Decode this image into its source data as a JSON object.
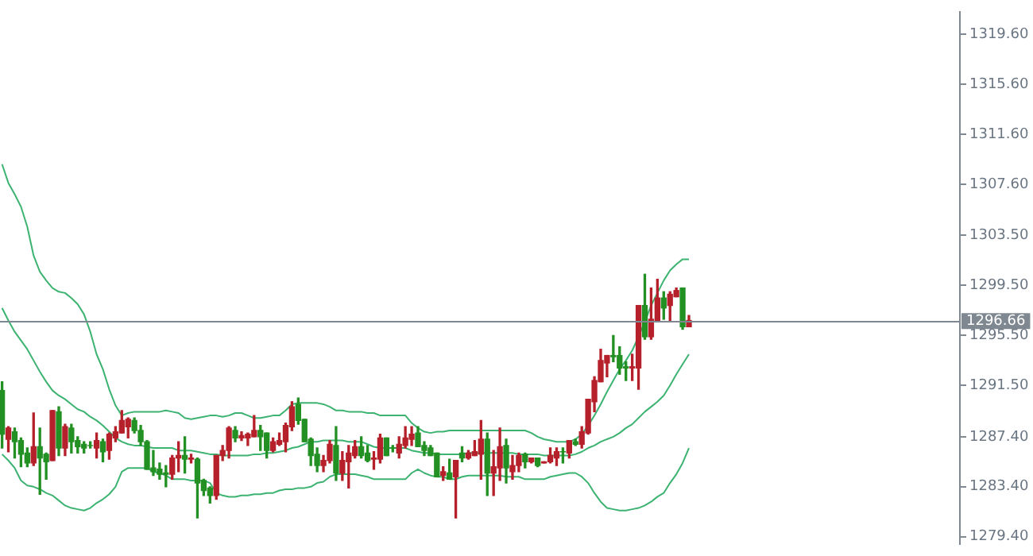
{
  "chart_data": {
    "type": "candlestick",
    "categories": [
      null,
      null,
      null,
      null,
      null,
      null,
      null,
      null,
      null,
      null,
      null,
      null,
      null,
      null,
      null,
      null,
      null,
      null,
      null,
      null,
      null,
      null,
      null,
      null,
      null,
      null,
      null,
      null,
      null,
      null,
      null,
      null,
      null,
      null,
      null,
      null,
      null,
      null,
      null,
      null,
      null,
      null,
      null,
      null,
      null,
      null,
      null,
      null,
      null,
      null,
      null,
      null,
      null,
      null,
      null,
      null,
      null,
      null,
      null,
      null,
      null,
      null,
      null,
      null,
      null,
      null,
      null,
      null,
      null,
      null,
      null,
      null,
      null,
      null,
      null,
      null,
      null,
      null,
      null,
      null,
      null,
      null,
      null,
      null,
      null,
      null,
      null,
      null,
      null,
      null,
      null,
      null,
      null,
      null,
      null,
      null,
      null,
      null,
      null,
      null,
      null,
      null,
      null,
      null,
      null,
      null,
      null,
      null,
      null,
      null
    ],
    "ohlc": [
      [
        1291.1,
        1291.8,
        1286.5,
        1287.6
      ],
      [
        1287.2,
        1288.2,
        1286.2,
        1288.1
      ],
      [
        1287.8,
        1288.1,
        1285.7,
        1287.0
      ],
      [
        1287.1,
        1287.3,
        1285.0,
        1286.0
      ],
      [
        1286.1,
        1286.5,
        1285.0,
        1285.3
      ],
      [
        1285.3,
        1289.3,
        1285.1,
        1286.6
      ],
      [
        1286.6,
        1288.1,
        1282.8,
        1285.7
      ],
      [
        1286.0,
        1286.1,
        1284.0,
        1285.4
      ],
      [
        1285.5,
        1289.5,
        1285.5,
        1289.5
      ],
      [
        1289.4,
        1289.8,
        1285.9,
        1286.5
      ],
      [
        1286.5,
        1288.4,
        1285.9,
        1288.2
      ],
      [
        1288.1,
        1288.4,
        1286.1,
        1287.0
      ],
      [
        1287.1,
        1287.4,
        1286.1,
        1286.6
      ],
      [
        1286.8,
        1287.0,
        1286.1,
        1286.5
      ],
      [
        1286.7,
        1287.0,
        1286.5,
        1286.7
      ],
      [
        1286.5,
        1287.7,
        1285.7,
        1287.1
      ],
      [
        1287.0,
        1287.2,
        1285.4,
        1286.2
      ],
      [
        1286.3,
        1287.7,
        1285.6,
        1287.6
      ],
      [
        1287.3,
        1288.2,
        1287.0,
        1287.8
      ],
      [
        1287.7,
        1289.5,
        1287.7,
        1288.7
      ],
      [
        1288.2,
        1288.9,
        1287.3,
        1288.8
      ],
      [
        1288.7,
        1288.9,
        1287.7,
        1287.9
      ],
      [
        1287.9,
        1288.3,
        1286.7,
        1287.0
      ],
      [
        1287.0,
        1287.1,
        1284.8,
        1284.8
      ],
      [
        1284.9,
        1286.3,
        1284.3,
        1284.6
      ],
      [
        1284.8,
        1285.3,
        1284.0,
        1284.4
      ],
      [
        1284.5,
        1285.1,
        1283.4,
        1284.4
      ],
      [
        1284.4,
        1285.9,
        1284.0,
        1285.7
      ],
      [
        1285.7,
        1287.0,
        1284.6,
        1285.9
      ],
      [
        1285.9,
        1287.4,
        1284.5,
        1285.6
      ],
      [
        1285.6,
        1286.0,
        1285.3,
        1285.7
      ],
      [
        1285.6,
        1285.7,
        1280.9,
        1283.7
      ],
      [
        1283.9,
        1284.0,
        1282.7,
        1283.1
      ],
      [
        1283.3,
        1283.4,
        1282.1,
        1282.7
      ],
      [
        1282.7,
        1285.9,
        1282.4,
        1285.9
      ],
      [
        1285.9,
        1286.7,
        1285.5,
        1286.3
      ],
      [
        1286.3,
        1288.2,
        1285.7,
        1288.1
      ],
      [
        1287.9,
        1288.2,
        1287.0,
        1287.3
      ],
      [
        1287.3,
        1287.8,
        1287.1,
        1287.5
      ],
      [
        1287.3,
        1287.7,
        1286.7,
        1287.6
      ],
      [
        1287.4,
        1289.1,
        1287.4,
        1287.9
      ],
      [
        1287.9,
        1288.3,
        1286.3,
        1287.4
      ],
      [
        1287.7,
        1287.7,
        1285.7,
        1286.3
      ],
      [
        1286.3,
        1287.3,
        1286.2,
        1287.0
      ],
      [
        1286.8,
        1287.7,
        1286.7,
        1287.1
      ],
      [
        1287.0,
        1288.5,
        1286.2,
        1288.3
      ],
      [
        1288.2,
        1290.2,
        1287.9,
        1289.8
      ],
      [
        1290.0,
        1290.5,
        1288.4,
        1288.7
      ],
      [
        1288.8,
        1288.8,
        1287.0,
        1287.0
      ],
      [
        1287.2,
        1287.3,
        1285.1,
        1285.9
      ],
      [
        1286.0,
        1286.5,
        1284.6,
        1285.1
      ],
      [
        1285.1,
        1285.9,
        1284.6,
        1285.5
      ],
      [
        1285.5,
        1287.1,
        1285.3,
        1286.8
      ],
      [
        1286.7,
        1288.2,
        1283.9,
        1284.5
      ],
      [
        1284.5,
        1286.2,
        1283.9,
        1285.5
      ],
      [
        1285.4,
        1286.7,
        1283.3,
        1286.1
      ],
      [
        1285.9,
        1287.1,
        1285.7,
        1286.6
      ],
      [
        1286.6,
        1287.4,
        1285.7,
        1285.9
      ],
      [
        1286.1,
        1286.7,
        1285.4,
        1285.5
      ],
      [
        1285.6,
        1286.2,
        1284.8,
        1285.7
      ],
      [
        1285.6,
        1287.6,
        1285.3,
        1287.3
      ],
      [
        1287.3,
        1287.3,
        1285.9,
        1285.9
      ],
      [
        1286.5,
        1286.7,
        1286.2,
        1286.5
      ],
      [
        1286.1,
        1287.4,
        1285.7,
        1286.8
      ],
      [
        1286.7,
        1288.2,
        1286.5,
        1287.3
      ],
      [
        1287.2,
        1288.2,
        1286.7,
        1287.6
      ],
      [
        1287.7,
        1288.2,
        1286.6,
        1286.6
      ],
      [
        1286.7,
        1287.0,
        1285.9,
        1286.3
      ],
      [
        1286.5,
        1286.7,
        1285.9,
        1285.9
      ],
      [
        1286.1,
        1286.1,
        1284.2,
        1284.2
      ],
      [
        1284.3,
        1285.0,
        1283.9,
        1284.6
      ],
      [
        1284.5,
        1285.6,
        1284.0,
        1284.0
      ],
      [
        1284.2,
        1285.5,
        1280.9,
        1285.5
      ],
      [
        1286.1,
        1286.6,
        1285.4,
        1285.7
      ],
      [
        1285.7,
        1286.3,
        1285.6,
        1286.1
      ],
      [
        1285.9,
        1287.1,
        1285.9,
        1286.2
      ],
      [
        1286.0,
        1288.7,
        1284.0,
        1287.2
      ],
      [
        1287.2,
        1287.7,
        1282.7,
        1284.5
      ],
      [
        1284.5,
        1286.3,
        1282.7,
        1285.0
      ],
      [
        1284.9,
        1288.1,
        1283.9,
        1286.6
      ],
      [
        1286.7,
        1287.2,
        1283.7,
        1284.9
      ],
      [
        1284.6,
        1285.9,
        1284.0,
        1285.1
      ],
      [
        1285.1,
        1286.1,
        1284.6,
        1285.9
      ],
      [
        1286.0,
        1286.1,
        1284.9,
        1285.4
      ],
      [
        1285.4,
        1285.7,
        1285.3,
        1285.7
      ],
      [
        1285.7,
        1285.7,
        1285.0,
        1285.1
      ],
      [
        1285.3,
        1285.4,
        1285.3,
        1285.4
      ],
      [
        1285.4,
        1286.5,
        1285.3,
        1285.9
      ],
      [
        1285.7,
        1286.5,
        1285.1,
        1286.2
      ],
      [
        1286.2,
        1286.5,
        1285.3,
        1286.2
      ],
      [
        1286.1,
        1287.1,
        1285.7,
        1287.1
      ],
      [
        1287.0,
        1287.2,
        1286.7,
        1286.8
      ],
      [
        1286.8,
        1288.2,
        1286.5,
        1287.8
      ],
      [
        1287.7,
        1290.4,
        1287.6,
        1290.4
      ],
      [
        1290.2,
        1292.2,
        1289.4,
        1291.9
      ],
      [
        1291.8,
        1294.4,
        1291.8,
        1293.5
      ],
      [
        1293.3,
        1293.9,
        1292.2,
        1293.9
      ],
      [
        1293.9,
        1295.5,
        1293.4,
        1293.8
      ],
      [
        1293.9,
        1294.6,
        1292.4,
        1292.9
      ],
      [
        1293.0,
        1293.4,
        1291.9,
        1292.9
      ],
      [
        1292.9,
        1294.0,
        1291.9,
        1293.0
      ],
      [
        1292.9,
        1297.9,
        1291.2,
        1297.9
      ],
      [
        1297.9,
        1300.4,
        1295.2,
        1295.4
      ],
      [
        1295.4,
        1299.3,
        1295.2,
        1296.8
      ],
      [
        1296.7,
        1300.0,
        1296.7,
        1298.5
      ],
      [
        1298.5,
        1299.0,
        1296.8,
        1297.7
      ],
      [
        1297.9,
        1299.0,
        1296.7,
        1298.8
      ],
      [
        1298.6,
        1299.3,
        1298.6,
        1299.1
      ],
      [
        1299.3,
        1299.3,
        1296.0,
        1296.2
      ],
      [
        1296.2,
        1297.1,
        1296.2,
        1296.7
      ]
    ],
    "colors": [
      "#239023",
      "#b5202a",
      "#239023",
      "#239023",
      "#239023",
      "#b5202a",
      "#239023",
      "#239023",
      "#b5202a",
      "#239023",
      "#b5202a",
      "#239023",
      "#239023",
      "#239023",
      "#239023",
      "#b5202a",
      "#239023",
      "#b5202a",
      "#b5202a",
      "#b5202a",
      "#b5202a",
      "#239023",
      "#239023",
      "#239023",
      "#239023",
      "#239023",
      "#239023",
      "#b5202a",
      "#b5202a",
      "#239023",
      "#b5202a",
      "#239023",
      "#239023",
      "#239023",
      "#b5202a",
      "#b5202a",
      "#b5202a",
      "#239023",
      "#b5202a",
      "#b5202a",
      "#b5202a",
      "#239023",
      "#239023",
      "#b5202a",
      "#b5202a",
      "#b5202a",
      "#b5202a",
      "#239023",
      "#239023",
      "#239023",
      "#239023",
      "#b5202a",
      "#b5202a",
      "#239023",
      "#b5202a",
      "#b5202a",
      "#b5202a",
      "#239023",
      "#239023",
      "#b5202a",
      "#b5202a",
      "#239023",
      "#239023",
      "#b5202a",
      "#b5202a",
      "#b5202a",
      "#239023",
      "#239023",
      "#239023",
      "#239023",
      "#b5202a",
      "#239023",
      "#b5202a",
      "#239023",
      "#b5202a",
      "#b5202a",
      "#b5202a",
      "#239023",
      "#b5202a",
      "#b5202a",
      "#239023",
      "#b5202a",
      "#b5202a",
      "#239023",
      "#b5202a",
      "#239023",
      "#b5202a",
      "#b5202a",
      "#b5202a",
      "#239023",
      "#b5202a",
      "#239023",
      "#b5202a",
      "#b5202a",
      "#b5202a",
      "#b5202a",
      "#b5202a",
      "#239023",
      "#239023",
      "#239023",
      "#b5202a",
      "#b5202a",
      "#239023",
      "#b5202a",
      "#b5202a",
      "#239023",
      "#b5202a",
      "#b5202a",
      "#239023",
      "#b5202a"
    ],
    "series": [
      {
        "type": "line",
        "color": "#3cb371",
        "values": [
          1309.2,
          1307.7,
          1306.8,
          1305.8,
          1304.2,
          1301.9,
          1300.6,
          1299.9,
          1299.3,
          1299.0,
          1298.9,
          1298.5,
          1298.0,
          1297.2,
          1295.8,
          1294.0,
          1292.8,
          1291.2,
          1289.9,
          1289.1,
          1289.3,
          1289.4,
          1289.4,
          1289.4,
          1289.4,
          1289.4,
          1289.5,
          1289.4,
          1289.3,
          1288.9,
          1288.8,
          1288.9,
          1289.0,
          1289.1,
          1289.1,
          1289.0,
          1289.1,
          1289.3,
          1289.3,
          1289.1,
          1288.9,
          1288.9,
          1289.0,
          1289.1,
          1289.1,
          1289.5,
          1290.0,
          1290.1,
          1290.1,
          1290.1,
          1290.1,
          1290.0,
          1289.8,
          1289.5,
          1289.5,
          1289.4,
          1289.4,
          1289.4,
          1289.3,
          1289.3,
          1289.1,
          1289.1,
          1289.1,
          1289.1,
          1289.1,
          1288.5,
          1288.1,
          1287.8,
          1287.7,
          1287.8,
          1287.8,
          1287.9,
          1287.9,
          1287.9,
          1287.9,
          1287.9,
          1287.9,
          1287.9,
          1287.9,
          1287.9,
          1287.9,
          1287.9,
          1287.9,
          1287.9,
          1287.7,
          1287.4,
          1287.2,
          1287.1,
          1287.0,
          1287.0,
          1287.0,
          1287.2,
          1287.6,
          1288.3,
          1289.1,
          1290.0,
          1291.0,
          1291.9,
          1292.8,
          1293.5,
          1294.3,
          1295.4,
          1296.6,
          1297.9,
          1298.9,
          1299.9,
          1300.7,
          1301.2,
          1301.6,
          1301.6
        ]
      },
      {
        "type": "line",
        "color": "#3cb371",
        "values": [
          1297.7,
          1296.7,
          1295.8,
          1295.1,
          1294.4,
          1293.5,
          1292.6,
          1291.8,
          1291.1,
          1290.7,
          1290.4,
          1290.0,
          1289.6,
          1289.4,
          1289.0,
          1288.7,
          1288.3,
          1287.8,
          1287.3,
          1287.0,
          1286.8,
          1286.7,
          1286.7,
          1286.6,
          1286.5,
          1286.5,
          1286.5,
          1286.5,
          1286.3,
          1286.3,
          1286.3,
          1286.2,
          1286.1,
          1286.0,
          1286.0,
          1285.9,
          1285.9,
          1285.9,
          1285.9,
          1285.9,
          1286.0,
          1286.0,
          1286.1,
          1286.1,
          1286.2,
          1286.3,
          1286.5,
          1286.6,
          1286.8,
          1287.0,
          1287.0,
          1287.1,
          1287.1,
          1287.1,
          1287.1,
          1287.0,
          1287.0,
          1287.0,
          1286.8,
          1286.6,
          1286.5,
          1286.5,
          1286.5,
          1286.5,
          1286.5,
          1286.3,
          1286.2,
          1286.1,
          1286.1,
          1286.0,
          1286.0,
          1286.0,
          1286.0,
          1286.0,
          1286.1,
          1286.1,
          1286.1,
          1286.1,
          1286.1,
          1286.1,
          1286.1,
          1286.1,
          1286.0,
          1286.0,
          1286.0,
          1286.0,
          1285.9,
          1285.9,
          1285.9,
          1285.9,
          1285.9,
          1286.0,
          1286.2,
          1286.5,
          1286.7,
          1287.0,
          1287.2,
          1287.4,
          1287.7,
          1288.1,
          1288.4,
          1288.9,
          1289.4,
          1289.8,
          1290.2,
          1290.7,
          1291.5,
          1292.4,
          1293.2,
          1294.0
        ]
      },
      {
        "type": "line",
        "color": "#3cb371",
        "values": [
          1286.0,
          1285.5,
          1284.9,
          1283.9,
          1283.5,
          1283.4,
          1283.2,
          1282.9,
          1282.7,
          1282.3,
          1281.9,
          1281.7,
          1281.6,
          1281.5,
          1281.7,
          1282.1,
          1282.4,
          1282.8,
          1283.4,
          1284.6,
          1284.9,
          1284.9,
          1284.9,
          1284.9,
          1284.6,
          1284.5,
          1284.3,
          1284.0,
          1284.0,
          1284.0,
          1283.9,
          1283.9,
          1283.9,
          1283.7,
          1282.9,
          1282.7,
          1282.6,
          1282.6,
          1282.7,
          1282.7,
          1282.8,
          1282.8,
          1282.9,
          1282.9,
          1283.1,
          1283.2,
          1283.2,
          1283.3,
          1283.3,
          1283.4,
          1283.7,
          1283.8,
          1284.2,
          1284.4,
          1284.4,
          1284.4,
          1284.4,
          1284.3,
          1284.2,
          1284.0,
          1284.0,
          1284.0,
          1284.0,
          1284.0,
          1284.0,
          1284.5,
          1284.8,
          1284.5,
          1284.3,
          1284.2,
          1284.2,
          1284.0,
          1284.0,
          1284.2,
          1284.3,
          1284.3,
          1284.3,
          1284.3,
          1284.3,
          1284.3,
          1284.2,
          1284.2,
          1284.2,
          1284.0,
          1284.0,
          1284.0,
          1284.0,
          1284.2,
          1284.3,
          1284.4,
          1284.5,
          1284.5,
          1284.2,
          1283.7,
          1282.9,
          1282.2,
          1281.7,
          1281.6,
          1281.5,
          1281.5,
          1281.6,
          1281.7,
          1281.9,
          1282.2,
          1282.6,
          1282.9,
          1283.7,
          1284.4,
          1285.3,
          1286.5
        ]
      }
    ],
    "ylim": [
      1278.8,
      1321.4
    ],
    "yticks": [
      {
        "value": 1319.6,
        "label": "1319.60"
      },
      {
        "value": 1315.6,
        "label": "1315.60"
      },
      {
        "value": 1311.6,
        "label": "1311.60"
      },
      {
        "value": 1307.6,
        "label": "1307.60"
      },
      {
        "value": 1303.5,
        "label": "1303.50"
      },
      {
        "value": 1299.5,
        "label": "1299.50"
      },
      {
        "value": 1295.5,
        "label": "1295.50"
      },
      {
        "value": 1291.5,
        "label": "1291.50"
      },
      {
        "value": 1287.4,
        "label": "1287.40"
      },
      {
        "value": 1283.4,
        "label": "1283.40"
      },
      {
        "value": 1279.4,
        "label": "1279.40"
      }
    ],
    "ref_lines": [
      {
        "axis": "y",
        "value": 1296.66,
        "label": "1296.66",
        "color": "#7f8891"
      }
    ],
    "tick_labels": "y",
    "grid": false,
    "legend": false
  }
}
